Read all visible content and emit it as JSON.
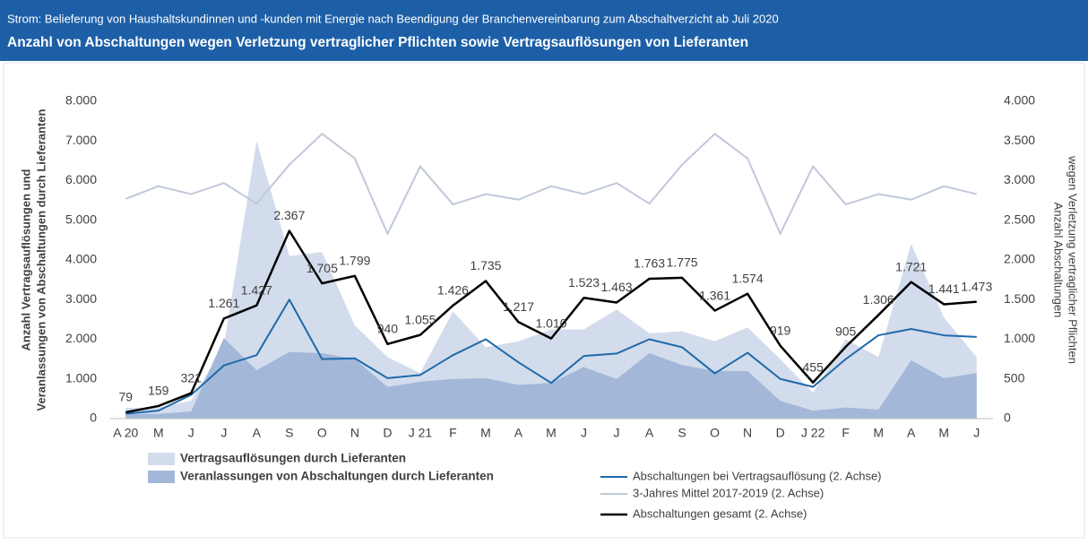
{
  "chart_data": {
    "type": "combo",
    "supertitle": "Strom: Belieferung von Haushaltskundinnen und -kunden mit Energie nach Beendigung der Branchenvereinbarung zum Abschaltverzicht ab Juli 2020",
    "title": "Anzahl von Abschaltungen wegen Verletzung vertraglicher Pflichten sowie Vertragsauflösungen von Lieferanten",
    "ylabel": [
      "Anzahl Vertragsauflösungen und",
      "Veranlassungen von Abschaltungen durch Lieferanten"
    ],
    "y2label": [
      "Anzahl Abschaltungen",
      "wegen Verletzung vertraglicher Pflichten"
    ],
    "categories": [
      "A 20",
      "M",
      "J",
      "J",
      "A",
      "S",
      "O",
      "N",
      "D",
      "J 21",
      "F",
      "M",
      "A",
      "M",
      "J",
      "J",
      "A",
      "S",
      "O",
      "N",
      "D",
      "J 22",
      "F",
      "M",
      "A",
      "M",
      "J"
    ],
    "ylim": [
      0,
      8000
    ],
    "yticks": [
      0,
      {
        "value": 1000,
        "label": "1.000"
      },
      {
        "value": 2000,
        "label": "2.000"
      },
      {
        "value": 3000,
        "label": "3.000"
      },
      {
        "value": 4000,
        "label": "4.000"
      },
      {
        "value": 5000,
        "label": "5.000"
      },
      {
        "value": 6000,
        "label": "6.000"
      },
      {
        "value": 7000,
        "label": "7.000"
      },
      {
        "value": 8000,
        "label": "8.000"
      }
    ],
    "y2lim": [
      0,
      4000
    ],
    "y2ticks": [
      0,
      500,
      {
        "value": 1000,
        "label": "1.000"
      },
      {
        "value": 1500,
        "label": "1.500"
      },
      {
        "value": 2000,
        "label": "2.000"
      },
      {
        "value": 2500,
        "label": "2.500"
      },
      {
        "value": 3000,
        "label": "3.000"
      },
      {
        "value": 3500,
        "label": "3.500"
      },
      {
        "value": 4000,
        "label": "4.000"
      }
    ],
    "series": [
      {
        "name": "Vertragsauflösungen durch Lieferanten",
        "type": "area",
        "axis": "y",
        "color": "#d3dcec",
        "values": [
          270,
          280,
          450,
          1850,
          7000,
          4100,
          4200,
          2350,
          1550,
          1150,
          2700,
          1800,
          1950,
          2250,
          2250,
          2750,
          2150,
          2200,
          1950,
          2300,
          1500,
          650,
          2000,
          1550,
          4400,
          2550,
          1550
        ]
      },
      {
        "name": "Veranlassungen von Abschaltungen durch Lieferanten",
        "type": "area",
        "axis": "y",
        "color": "#a3b8d8",
        "values": [
          120,
          120,
          180,
          2030,
          1220,
          1680,
          1650,
          1500,
          800,
          930,
          1000,
          1020,
          850,
          900,
          1300,
          1000,
          1650,
          1350,
          1200,
          1200,
          450,
          200,
          280,
          230,
          1470,
          1020,
          1150
        ]
      },
      {
        "name": "3-Jahres Mittel 2017-2019 (2. Achse)",
        "type": "line",
        "axis": "y2",
        "color": "#c0c8da",
        "values": [
          2770,
          2930,
          2830,
          2970,
          2710,
          3200,
          3590,
          3280,
          2330,
          3180,
          2700,
          2830,
          2760,
          2930,
          2830,
          2970,
          2710,
          3200,
          3590,
          3280,
          2330,
          3180,
          2700,
          2830,
          2760,
          2930,
          2830
        ]
      },
      {
        "name": "Abschaltungen bei Vertragsauflösung (2. Achse)",
        "type": "line",
        "axis": "y2",
        "color": "#1f69aa",
        "values": [
          60,
          100,
          300,
          670,
          800,
          1500,
          750,
          760,
          510,
          550,
          800,
          1000,
          710,
          450,
          790,
          820,
          1000,
          900,
          570,
          830,
          500,
          400,
          750,
          1050,
          1130,
          1050,
          1030
        ]
      },
      {
        "name": "Abschaltungen gesamt (2. Achse)",
        "type": "line",
        "axis": "y2",
        "color": "#000000",
        "values": [
          79,
          159,
          321,
          1261,
          1427,
          2367,
          1705,
          1799,
          940,
          1055,
          1426,
          1735,
          1217,
          1010,
          1523,
          1463,
          1763,
          1775,
          1361,
          1574,
          919,
          455,
          905,
          1306,
          1721,
          1441,
          1473
        ],
        "value_labels": [
          "79",
          "159",
          "321",
          "1.261",
          "1.427",
          "2.367",
          "1.705",
          "1.799",
          "940",
          "1.055",
          "1.426",
          "1.735",
          "1.217",
          "1.010",
          "1.523",
          "1.463",
          "1.763",
          "1.775",
          "1.361",
          "1.574",
          "919",
          "455",
          "905",
          "1.306",
          "1.721",
          "1.441",
          "1.473"
        ]
      }
    ]
  }
}
